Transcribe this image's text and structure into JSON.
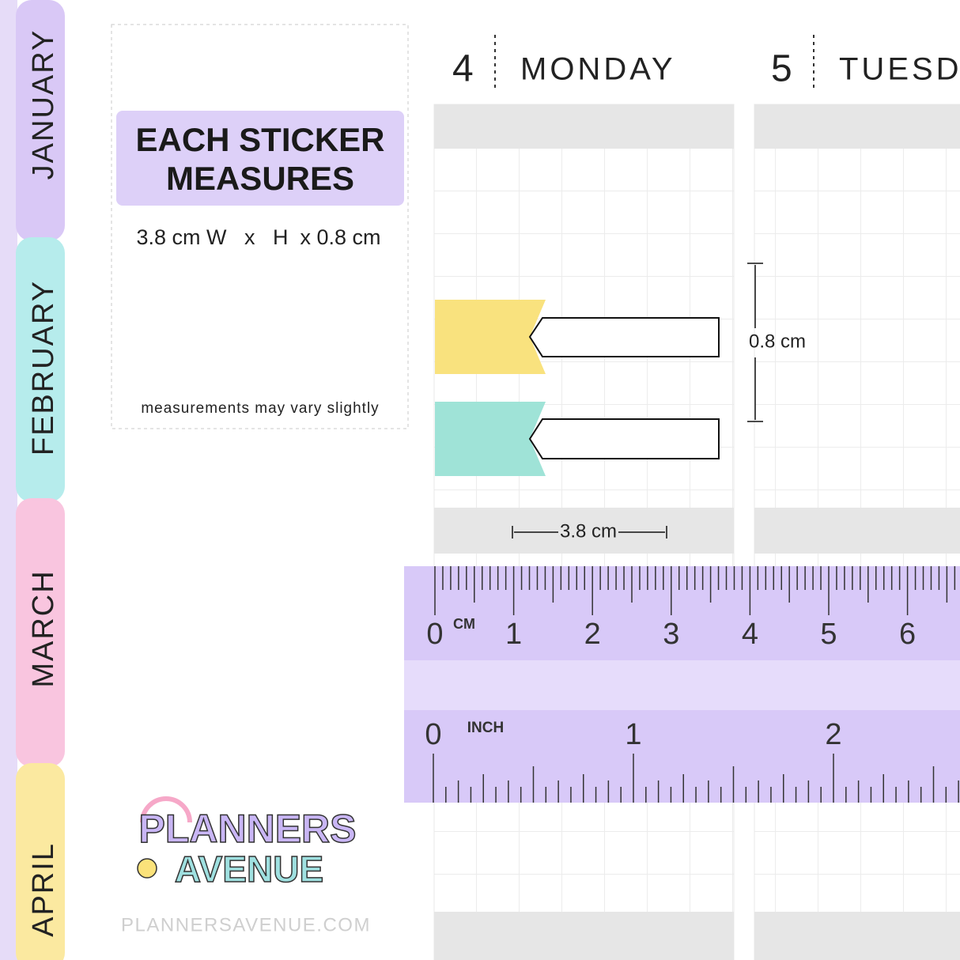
{
  "tabs": [
    "JANUARY",
    "FEBRUARY",
    "MARCH",
    "APRIL"
  ],
  "info": {
    "title_line1": "EACH STICKER",
    "title_line2": "MEASURES",
    "dimensions": "3.8 cm W   x   H  x 0.8 cm",
    "note": "measurements may vary slightly"
  },
  "days": [
    {
      "number": "4",
      "name": "MONDAY"
    },
    {
      "number": "5",
      "name": "TUESDAY"
    }
  ],
  "dimension_labels": {
    "height": "0.8 cm",
    "width": "3.8 cm"
  },
  "ruler": {
    "cm_unit": "CM",
    "cm_labels": [
      "0",
      "1",
      "2",
      "3",
      "4",
      "5",
      "6"
    ],
    "inch_unit": "INCH",
    "inch_labels": [
      "0",
      "1",
      "2"
    ]
  },
  "logo": {
    "line1": "PLANNERS",
    "line2": "AVENUE",
    "url": "PLANNERSAVENUE.COM"
  }
}
